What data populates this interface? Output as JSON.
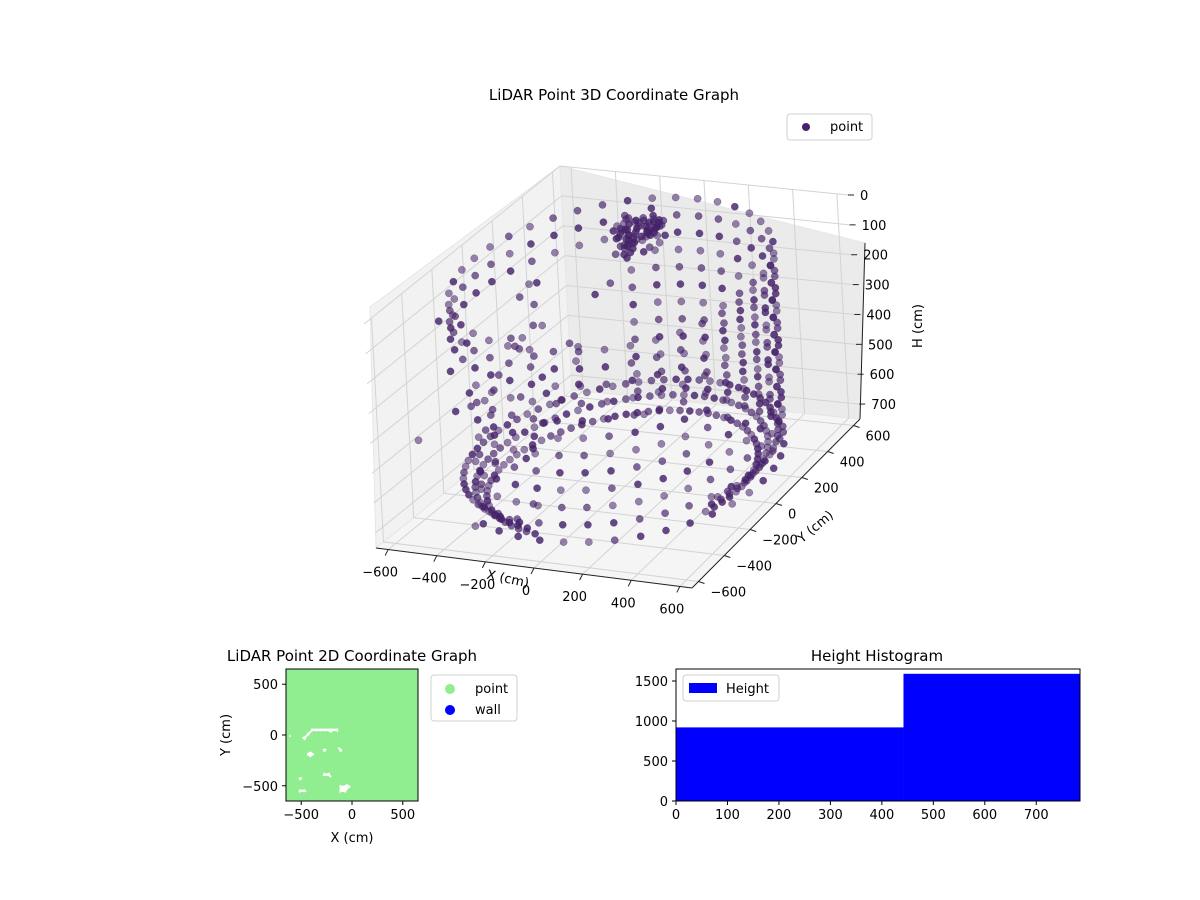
{
  "figure": {
    "panel_3d": {
      "title": "LiDAR Point 3D Coordinate Graph",
      "legend_label": "point",
      "xlabel": "X (cm)",
      "ylabel": "Y (cm)",
      "zlabel": "H (cm)",
      "x_ticks": [
        "−600",
        "−400",
        "−200",
        "0",
        "200",
        "400",
        "600"
      ],
      "y_ticks": [
        "−600",
        "−400",
        "−200",
        "0",
        "200",
        "400",
        "600"
      ],
      "z_ticks": [
        "0",
        "100",
        "200",
        "300",
        "400",
        "500",
        "600",
        "700"
      ]
    },
    "panel_2d": {
      "title": "LiDAR Point 2D Coordinate Graph",
      "xlabel": "X (cm)",
      "ylabel": "Y (cm)",
      "legend": [
        "point",
        "wall"
      ],
      "x_ticks": [
        "−500",
        "0",
        "500"
      ],
      "y_ticks": [
        "500",
        "0",
        "−500"
      ]
    },
    "panel_hist": {
      "title": "Height Histogram",
      "legend_label": "Height",
      "x_ticks": [
        "0",
        "100",
        "200",
        "300",
        "400",
        "500",
        "600",
        "700"
      ],
      "y_ticks": [
        "0",
        "500",
        "1000",
        "1500"
      ]
    }
  },
  "colors": {
    "point_3d": "#46226a",
    "point_2d": "#90ee90",
    "wall": "#0000ff",
    "hist_bar": "#0000ff"
  },
  "chart_data": [
    {
      "type": "scatter",
      "title": "LiDAR Point 3D Coordinate Graph",
      "xlabel": "X (cm)",
      "ylabel": "Y (cm)",
      "zlabel": "H (cm)",
      "xlim": [
        -650,
        650
      ],
      "ylim": [
        -650,
        650
      ],
      "zlim": [
        750,
        0
      ],
      "series": [
        {
          "name": "point"
        }
      ],
      "legend_position": "upper right",
      "description_values": {
        "cylinder_radius_cm": 600,
        "height_range_cm": [
          0,
          750
        ]
      }
    },
    {
      "type": "scatter",
      "title": "LiDAR Point 2D Coordinate Graph",
      "xlabel": "X (cm)",
      "ylabel": "Y (cm)",
      "xlim": [
        -650,
        650
      ],
      "ylim": [
        -650,
        650
      ],
      "series": [
        {
          "name": "point"
        },
        {
          "name": "wall"
        }
      ],
      "legend_position": "outside right"
    },
    {
      "type": "bar",
      "title": "Height Histogram",
      "xlim": [
        0,
        785
      ],
      "ylim": [
        0,
        1650
      ],
      "bins": [
        {
          "start": 0,
          "end": 442,
          "value": 920
        },
        {
          "start": 442,
          "end": 785,
          "value": 1590
        }
      ],
      "series": [
        {
          "name": "Height"
        }
      ],
      "legend_position": "upper left"
    }
  ]
}
